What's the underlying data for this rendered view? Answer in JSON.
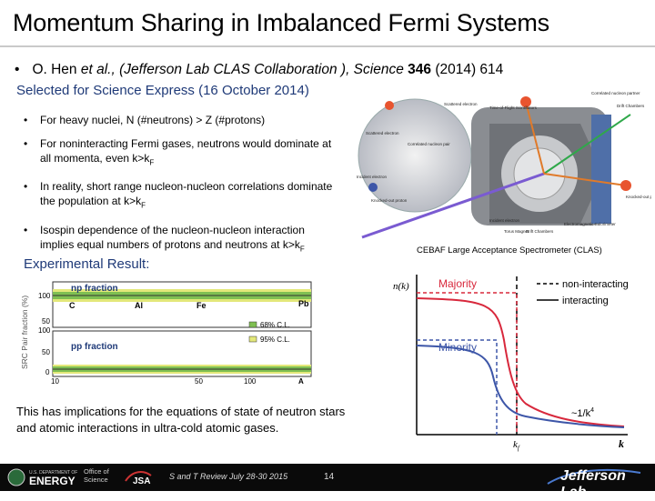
{
  "title": "Momentum Sharing in Imbalanced Fermi Systems",
  "citation": {
    "bullet": "•",
    "authors": "O. Hen",
    "etal": "et al.",
    "collab": ", (Jefferson Lab CLAS Collaboration ), Science ",
    "volume": "346",
    "rest": " (2014) 614"
  },
  "express": "Selected for Science Express (16 October 2014)",
  "bullets": [
    {
      "mark": "•",
      "text": "For heavy nuclei, N (#neutrons) > Z (#protons)"
    },
    {
      "mark": "•",
      "text": "For noninteracting Fermi gases, neutrons would dominate at all momenta, even k>k",
      "sub": "F"
    },
    {
      "mark": "•",
      "text": "In reality, short range nucleon-nucleon correlations dominate the population at k>k",
      "sub": "F"
    },
    {
      "mark": "•",
      "text": "Isospin dependence of the nucleon-nucleon interaction implies equal numbers of protons and neutrons at k>k",
      "sub": "F"
    }
  ],
  "apparatus": {
    "labels": [
      "Correlated nucleon partner",
      "Scattered electron",
      "Time-of-Flight Scintillators",
      "Drift Chambers",
      "Scattered electron",
      "Correlated nucleon pair",
      "Knocked-out proton",
      "Incident electron",
      "Knocked-out proton",
      "Incident electron",
      "Torus Magnet",
      "Drift Chambers",
      "Electromagnetic Calorimeter"
    ],
    "caption": "CEBAF Large Acceptance Spectrometer (CLAS)"
  },
  "experimental": "Experimental Result:",
  "src_plot": {
    "ylabel": "SRC Pair fraction (%)",
    "np_title": "np fraction",
    "pp_title": "pp fraction",
    "nuclei": [
      "C",
      "Al",
      "Fe",
      "Pb"
    ],
    "legend": [
      "68% C.L.",
      "95% C.L."
    ],
    "top_ticks": [
      "100",
      "50"
    ],
    "bottom_ticks": [
      "100",
      "50",
      "0"
    ],
    "x_ticks": [
      "10",
      "50",
      "100",
      "A"
    ]
  },
  "implications": "This has implications for the equations of state of neutron stars and atomic interactions in ultra-cold atomic gases.",
  "nk_plot": {
    "ylabel": "n(k)",
    "majority": "Majority",
    "minority": "Minority",
    "legend_noninteracting": "non-interacting",
    "legend_interacting": "interacting",
    "tail": "~1/k",
    "tail_exp": "4",
    "kf": "k",
    "kf_sub": "f",
    "k": "k",
    "colors": {
      "majority": "#d8283c",
      "minority": "#3d56a8",
      "dashed": "#000000"
    }
  },
  "footer": {
    "doe_small": "U.S. DEPARTMENT OF",
    "doe": "ENERGY",
    "office": "Office of Science",
    "jsa": "JSA",
    "review": "S and T Review July 28-30 2015",
    "page": "14",
    "jlab": "Jefferson Lab"
  }
}
